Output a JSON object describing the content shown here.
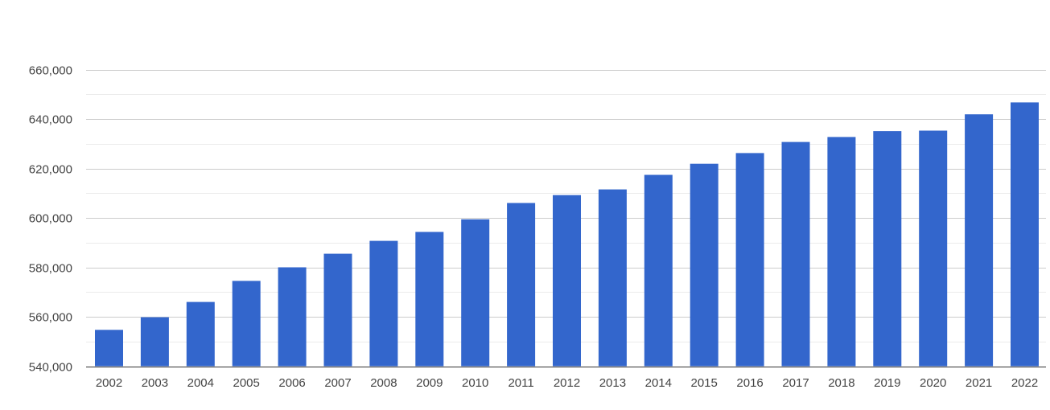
{
  "chart_data": {
    "type": "bar",
    "title": "",
    "xlabel": "",
    "ylabel": "",
    "categories": [
      "2002",
      "2003",
      "2004",
      "2005",
      "2006",
      "2007",
      "2008",
      "2009",
      "2010",
      "2011",
      "2012",
      "2013",
      "2014",
      "2015",
      "2016",
      "2017",
      "2018",
      "2019",
      "2020",
      "2021",
      "2022"
    ],
    "values": [
      554700,
      559800,
      566000,
      574500,
      580000,
      585500,
      590700,
      594300,
      599400,
      606000,
      609200,
      611500,
      617400,
      621900,
      626200,
      630700,
      632700,
      635100,
      635300,
      641900,
      646700
    ],
    "ylim": [
      540000,
      660000
    ],
    "yticks": [
      540000,
      560000,
      580000,
      600000,
      620000,
      640000,
      660000
    ],
    "ytick_labels": [
      "540,000",
      "560,000",
      "580,000",
      "600,000",
      "620,000",
      "640,000",
      "660,000"
    ],
    "grid": true,
    "legend": "none",
    "colors": {
      "bar": "#3366cc",
      "major_grid": "#cccccc",
      "minor_grid": "#ebebeb",
      "text": "#444444"
    }
  }
}
